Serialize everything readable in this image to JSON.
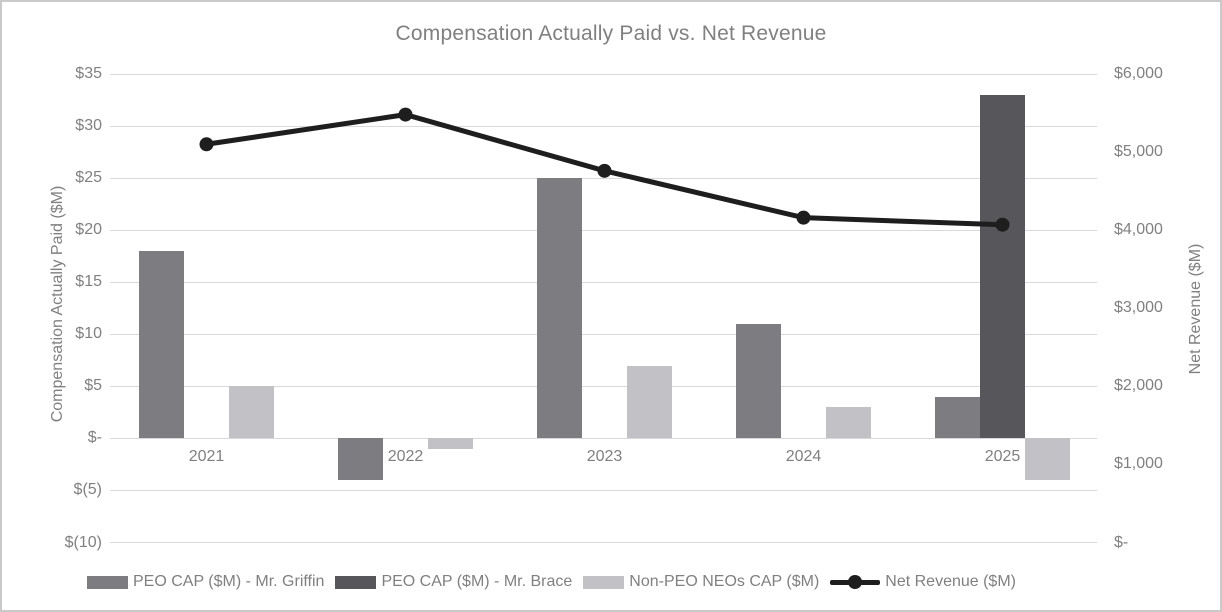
{
  "title": "Compensation Actually Paid vs. Net Revenue",
  "chart_data": {
    "type": "bar",
    "subtype": "grouped bars with secondary-axis line (combo chart)",
    "title": "Compensation Actually Paid vs. Net Revenue",
    "categories": [
      "2021",
      "2022",
      "2023",
      "2024",
      "2025"
    ],
    "series": [
      {
        "name": "PEO CAP ($M) - Mr. Griffin",
        "type": "bar",
        "axis": "left",
        "color": "#7d7d81",
        "values": [
          18,
          -4,
          25,
          11,
          4
        ]
      },
      {
        "name": "PEO CAP ($M) - Mr. Brace",
        "type": "bar",
        "axis": "left",
        "color": "#56565b",
        "values": [
          null,
          null,
          null,
          null,
          33
        ]
      },
      {
        "name": "Non-PEO NEOs CAP ($M)",
        "type": "bar",
        "axis": "left",
        "color": "#c2c2c6",
        "values": [
          5,
          -1,
          7,
          3,
          -4
        ]
      },
      {
        "name": "Net Revenue ($M)",
        "type": "line",
        "axis": "right",
        "color": "#1e1e1e",
        "values": [
          5100,
          5480,
          4760,
          4160,
          4070
        ]
      }
    ],
    "left_axis": {
      "title": "Compensation Actually Paid ($M)",
      "min": -10,
      "max": 35,
      "step": 5,
      "tick_labels": [
        "$35",
        "$30",
        "$25",
        "$20",
        "$15",
        "$10",
        "$5",
        "$-",
        "$(5)",
        "$(10)"
      ]
    },
    "right_axis": {
      "title": "Net Revenue ($M)",
      "min": 0,
      "max": 6000,
      "step": 1000,
      "tick_labels": [
        "$6,000",
        "$5,000",
        "$4,000",
        "$3,000",
        "$2,000",
        "$1,000",
        "$-"
      ]
    },
    "grid": true,
    "legend_position": "bottom",
    "colors": {
      "grid": "#d9d9d9",
      "text": "#808080",
      "line_series": "#1e1e1e",
      "border": "#c9c9c9"
    }
  }
}
